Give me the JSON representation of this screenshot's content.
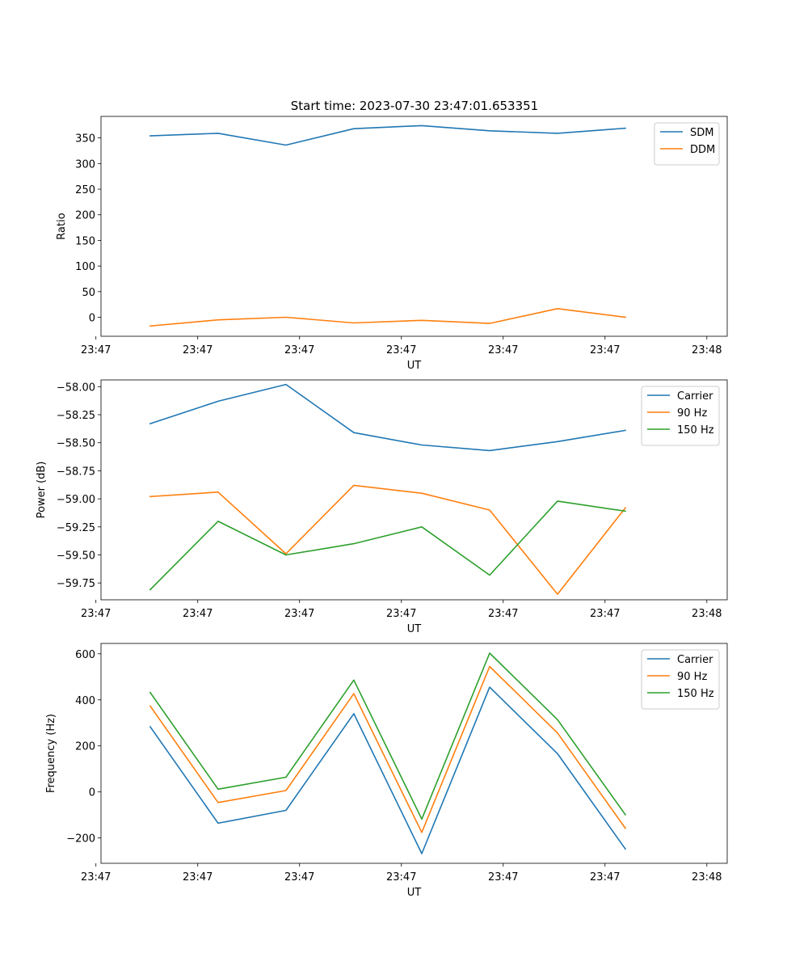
{
  "figure": {
    "title": "Start time: 2023-07-30 23:47:01.653351"
  },
  "chart_data": [
    {
      "type": "line",
      "title": "Start time: 2023-07-30 23:47:01.653351",
      "xlabel": "UT",
      "ylabel": "Ratio",
      "x": [
        1,
        2,
        3,
        4,
        5,
        6,
        7,
        8
      ],
      "xlim": [
        0.275,
        9.5
      ],
      "xticks": [
        0.2,
        1.7,
        3.2,
        4.7,
        6.2,
        7.7,
        9.2
      ],
      "xtick_labels": [
        "23:47",
        "23:47",
        "23:47",
        "23:47",
        "23:47",
        "23:47",
        "23:48"
      ],
      "ylim": [
        -37,
        392
      ],
      "yticks": [
        0,
        50,
        100,
        150,
        200,
        250,
        300,
        350
      ],
      "ytick_labels": [
        "0",
        "50",
        "100",
        "150",
        "200",
        "250",
        "300",
        "350"
      ],
      "legend": "top-right",
      "series": [
        {
          "name": "SDM",
          "color": "#1f77b4",
          "values": [
            354,
            359,
            336,
            368,
            374,
            364,
            359,
            369
          ]
        },
        {
          "name": "DDM",
          "color": "#ff7f0e",
          "values": [
            -17,
            -5,
            0,
            -11,
            -6,
            -12,
            17,
            0
          ]
        }
      ]
    },
    {
      "type": "line",
      "title": "",
      "xlabel": "UT",
      "ylabel": "Power (dB)",
      "x": [
        1,
        2,
        3,
        4,
        5,
        6,
        7,
        8
      ],
      "xlim": [
        0.275,
        9.5
      ],
      "xticks": [
        0.2,
        1.7,
        3.2,
        4.7,
        6.2,
        7.7,
        9.2
      ],
      "xtick_labels": [
        "23:47",
        "23:47",
        "23:47",
        "23:47",
        "23:47",
        "23:47",
        "23:48"
      ],
      "ylim": [
        -59.9,
        -57.94
      ],
      "yticks": [
        -59.75,
        -59.5,
        -59.25,
        -59.0,
        -58.75,
        -58.5,
        -58.25,
        -58.0
      ],
      "ytick_labels": [
        "−59.75",
        "−59.50",
        "−59.25",
        "−59.00",
        "−58.75",
        "−58.50",
        "−58.25",
        "−58.00"
      ],
      "legend": "top-right",
      "series": [
        {
          "name": "Carrier",
          "color": "#1f77b4",
          "values": [
            -58.33,
            -58.13,
            -57.98,
            -58.41,
            -58.52,
            -58.57,
            -58.49,
            -58.39
          ]
        },
        {
          "name": "90 Hz",
          "color": "#ff7f0e",
          "values": [
            -58.98,
            -58.94,
            -59.49,
            -58.88,
            -58.95,
            -59.1,
            -59.85,
            -59.08
          ]
        },
        {
          "name": "150 Hz",
          "color": "#2ca02c",
          "values": [
            -59.81,
            -59.2,
            -59.5,
            -59.4,
            -59.25,
            -59.68,
            -59.02,
            -59.11
          ]
        }
      ]
    },
    {
      "type": "line",
      "title": "",
      "xlabel": "UT",
      "ylabel": "Frequency (Hz)",
      "x": [
        1,
        2,
        3,
        4,
        5,
        6,
        7,
        8
      ],
      "xlim": [
        0.275,
        9.5
      ],
      "xticks": [
        0.2,
        1.7,
        3.2,
        4.7,
        6.2,
        7.7,
        9.2
      ],
      "xtick_labels": [
        "23:47",
        "23:47",
        "23:47",
        "23:47",
        "23:47",
        "23:47",
        "23:48"
      ],
      "ylim": [
        -310,
        645
      ],
      "yticks": [
        -200,
        0,
        200,
        400,
        600
      ],
      "ytick_labels": [
        "−200",
        "0",
        "200",
        "400",
        "600"
      ],
      "legend": "top-right",
      "series": [
        {
          "name": "Carrier",
          "color": "#1f77b4",
          "values": [
            283,
            -136,
            -80,
            340,
            -268,
            455,
            166,
            -248
          ]
        },
        {
          "name": "90 Hz",
          "color": "#ff7f0e",
          "values": [
            373,
            -46,
            6,
            427,
            -176,
            545,
            256,
            -158
          ]
        },
        {
          "name": "150 Hz",
          "color": "#2ca02c",
          "values": [
            432,
            12,
            64,
            486,
            -118,
            603,
            314,
            -99
          ]
        }
      ]
    }
  ]
}
